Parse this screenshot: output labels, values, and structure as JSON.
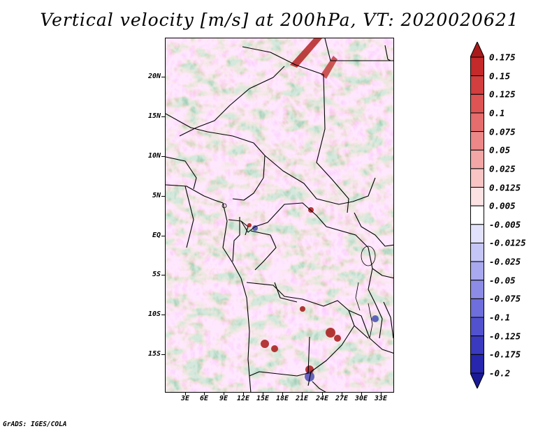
{
  "title": "Vertical velocity [m/s] at 200hPa, VT: 2020020621",
  "credit": "GrADS: IGES/COLA",
  "map": {
    "lat_labels": [
      "20N",
      "15N",
      "10N",
      "5N",
      "EQ",
      "5S",
      "10S",
      "15S"
    ],
    "lon_labels": [
      "3E",
      "6E",
      "9E",
      "12E",
      "15E",
      "18E",
      "21E",
      "24E",
      "27E",
      "30E",
      "33E"
    ]
  },
  "colorbar": {
    "labels": [
      "0.175",
      "0.15",
      "0.125",
      "0.1",
      "0.075",
      "0.05",
      "0.025",
      "0.0125",
      "0.005",
      "-0.005",
      "-0.0125",
      "-0.025",
      "-0.05",
      "-0.075",
      "-0.1",
      "-0.125",
      "-0.175",
      "-0.2"
    ],
    "colors": [
      "#aa1a1a",
      "#c42a2a",
      "#d33e3e",
      "#de5454",
      "#e66d6d",
      "#ed8888",
      "#f3a6a6",
      "#f8c4c4",
      "#fce2e2",
      "#ffffff",
      "#e2e2fc",
      "#c6c6f6",
      "#a9a9ef",
      "#8c8ce6",
      "#6e6edc",
      "#5252cf",
      "#3a3ac0",
      "#2626ae",
      "#1a1a96"
    ]
  }
}
